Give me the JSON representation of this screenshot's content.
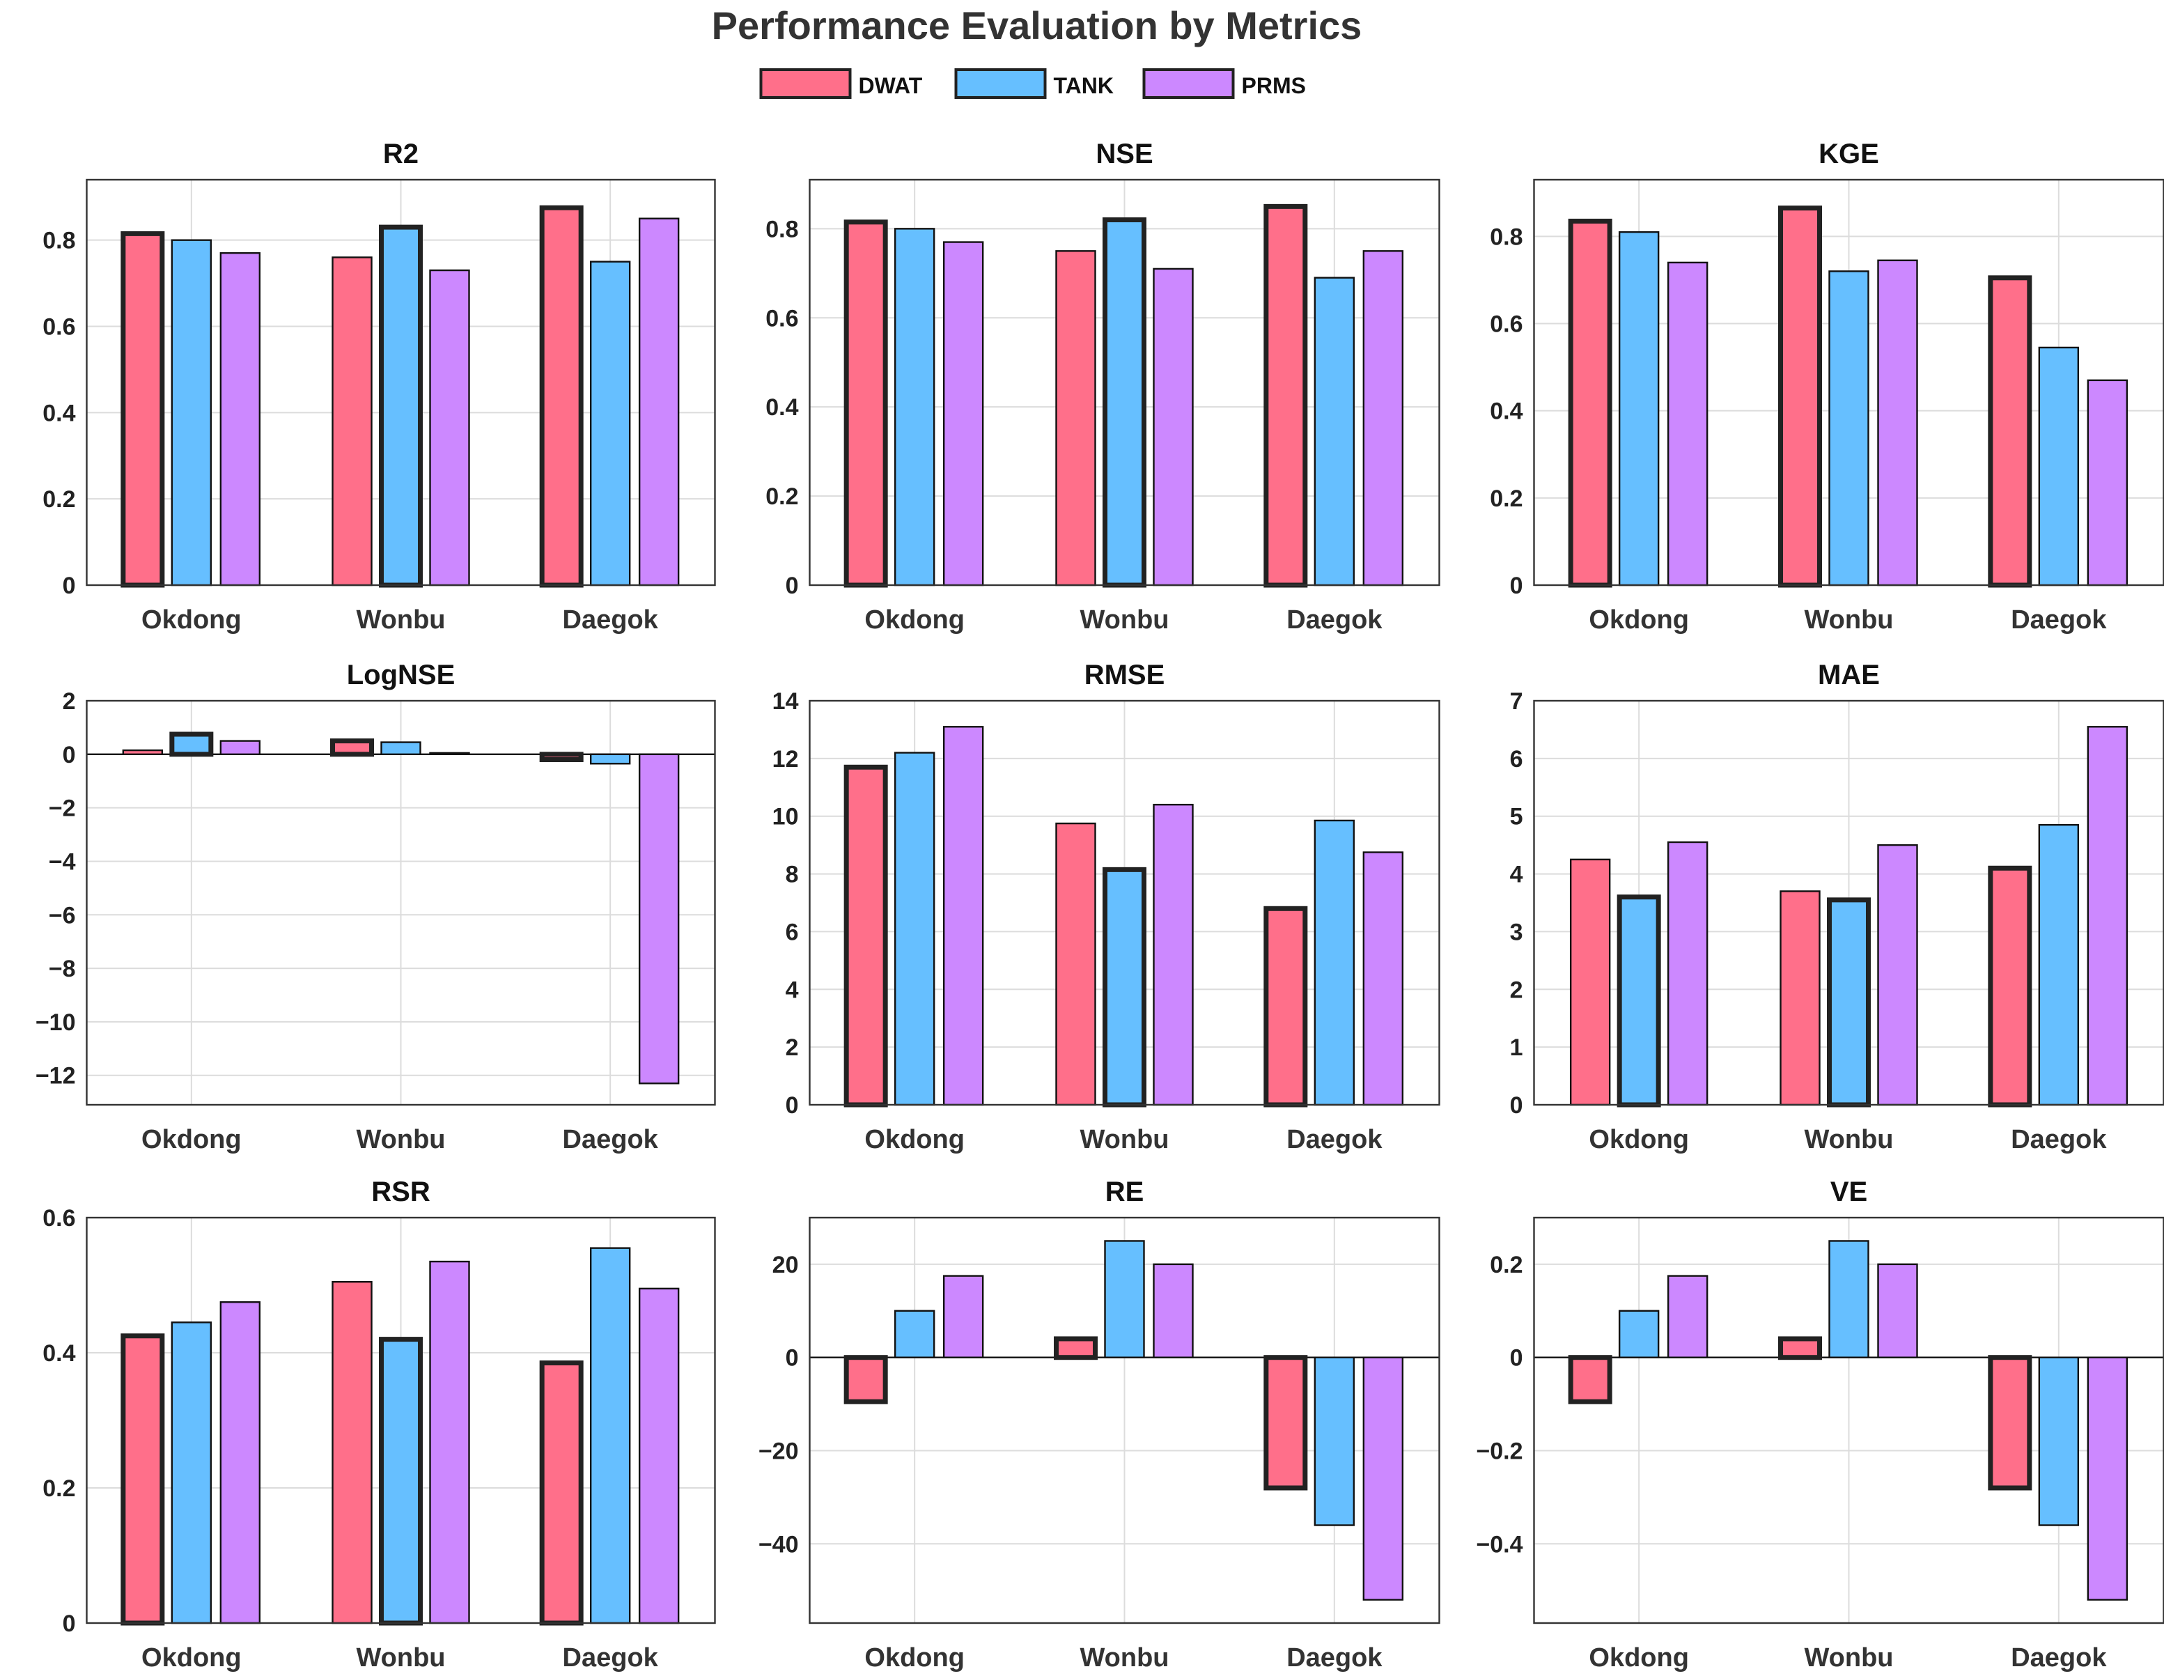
{
  "chart_data": {
    "type": "bar",
    "title": "Performance Evaluation by Metrics",
    "legend": {
      "placement": "top-center",
      "entries": [
        "DWAT",
        "TANK",
        "PRMS"
      ]
    },
    "colors": {
      "DWAT": "#ff6f8a",
      "TANK": "#66bfff",
      "PRMS": "#cc88ff"
    },
    "categories": [
      "Okdong",
      "Wonbu",
      "Daegok"
    ],
    "grid": true,
    "panels": [
      {
        "title": "R2",
        "ylim": [
          0,
          0.94
        ],
        "ticks": [
          0,
          0.2,
          0.4,
          0.6,
          0.8
        ],
        "tick_labels": [
          "0",
          "0.2",
          "0.4",
          "0.6",
          "0.8"
        ],
        "series": [
          {
            "name": "DWAT",
            "values": [
              0.815,
              0.76,
              0.875
            ]
          },
          {
            "name": "TANK",
            "values": [
              0.8,
              0.83,
              0.75
            ]
          },
          {
            "name": "PRMS",
            "values": [
              0.77,
              0.73,
              0.85
            ]
          }
        ],
        "best": [
          "DWAT",
          "TANK",
          "DWAT"
        ]
      },
      {
        "title": "NSE",
        "ylim": [
          0,
          0.91
        ],
        "ticks": [
          0,
          0.2,
          0.4,
          0.6,
          0.8
        ],
        "tick_labels": [
          "0",
          "0.2",
          "0.4",
          "0.6",
          "0.8"
        ],
        "series": [
          {
            "name": "DWAT",
            "values": [
              0.815,
              0.75,
              0.85
            ]
          },
          {
            "name": "TANK",
            "values": [
              0.8,
              0.82,
              0.69
            ]
          },
          {
            "name": "PRMS",
            "values": [
              0.77,
              0.71,
              0.75
            ]
          }
        ],
        "best": [
          "DWAT",
          "TANK",
          "DWAT"
        ]
      },
      {
        "title": "KGE",
        "ylim": [
          0,
          0.93
        ],
        "ticks": [
          0,
          0.2,
          0.4,
          0.6,
          0.8
        ],
        "tick_labels": [
          "0",
          "0.2",
          "0.4",
          "0.6",
          "0.8"
        ],
        "series": [
          {
            "name": "DWAT",
            "values": [
              0.835,
              0.865,
              0.705
            ]
          },
          {
            "name": "TANK",
            "values": [
              0.81,
              0.72,
              0.545
            ]
          },
          {
            "name": "PRMS",
            "values": [
              0.74,
              0.745,
              0.47
            ]
          }
        ],
        "best": [
          "DWAT",
          "DWAT",
          "DWAT"
        ]
      },
      {
        "title": "LogNSE",
        "ylim": [
          -13.1,
          2
        ],
        "ticks": [
          -12,
          -10,
          -8,
          -6,
          -4,
          -2,
          0,
          2
        ],
        "tick_labels": [
          "−12",
          "−10",
          "−8",
          "−6",
          "−4",
          "−2",
          "0",
          "2"
        ],
        "series": [
          {
            "name": "DWAT",
            "values": [
              0.15,
              0.5,
              -0.2
            ]
          },
          {
            "name": "TANK",
            "values": [
              0.75,
              0.45,
              -0.35
            ]
          },
          {
            "name": "PRMS",
            "values": [
              0.5,
              0.05,
              -12.3
            ]
          }
        ],
        "best": [
          "TANK",
          "DWAT",
          "DWAT"
        ]
      },
      {
        "title": "RMSE",
        "ylim": [
          0,
          14
        ],
        "ticks": [
          0,
          2,
          4,
          6,
          8,
          10,
          12,
          14
        ],
        "tick_labels": [
          "0",
          "2",
          "4",
          "6",
          "8",
          "10",
          "12",
          "14"
        ],
        "series": [
          {
            "name": "DWAT",
            "values": [
              11.7,
              9.75,
              6.8
            ]
          },
          {
            "name": "TANK",
            "values": [
              12.2,
              8.15,
              9.85
            ]
          },
          {
            "name": "PRMS",
            "values": [
              13.1,
              10.4,
              8.75
            ]
          }
        ],
        "best": [
          "DWAT",
          "TANK",
          "DWAT"
        ]
      },
      {
        "title": "MAE",
        "ylim": [
          0,
          7
        ],
        "ticks": [
          0,
          1,
          2,
          3,
          4,
          5,
          6,
          7
        ],
        "tick_labels": [
          "0",
          "1",
          "2",
          "3",
          "4",
          "5",
          "6",
          "7"
        ],
        "series": [
          {
            "name": "DWAT",
            "values": [
              4.25,
              3.7,
              4.1
            ]
          },
          {
            "name": "TANK",
            "values": [
              3.6,
              3.55,
              4.85
            ]
          },
          {
            "name": "PRMS",
            "values": [
              4.55,
              4.5,
              6.55
            ]
          }
        ],
        "best": [
          "TANK",
          "TANK",
          "DWAT"
        ]
      },
      {
        "title": "RSR",
        "ylim": [
          0,
          0.6
        ],
        "ticks": [
          0,
          0.2,
          0.4,
          0.6
        ],
        "tick_labels": [
          "0",
          "0.2",
          "0.4",
          "0.6"
        ],
        "series": [
          {
            "name": "DWAT",
            "values": [
              0.425,
              0.505,
              0.385
            ]
          },
          {
            "name": "TANK",
            "values": [
              0.445,
              0.42,
              0.555
            ]
          },
          {
            "name": "PRMS",
            "values": [
              0.475,
              0.535,
              0.495
            ]
          }
        ],
        "best": [
          "DWAT",
          "TANK",
          "DWAT"
        ]
      },
      {
        "title": "RE",
        "ylim": [
          -57,
          30
        ],
        "ticks": [
          -40,
          -20,
          0,
          20
        ],
        "tick_labels": [
          "−40",
          "−20",
          "0",
          "20"
        ],
        "series": [
          {
            "name": "DWAT",
            "values": [
              -9.5,
              4,
              -28
            ]
          },
          {
            "name": "TANK",
            "values": [
              10,
              25,
              -36
            ]
          },
          {
            "name": "PRMS",
            "values": [
              17.5,
              20,
              -52
            ]
          }
        ],
        "best": [
          "DWAT",
          "DWAT",
          "DWAT"
        ]
      },
      {
        "title": "VE",
        "ylim": [
          -0.57,
          0.3
        ],
        "ticks": [
          -0.4,
          -0.2,
          0,
          0.2
        ],
        "tick_labels": [
          "−0.4",
          "−0.2",
          "0",
          "0.2"
        ],
        "series": [
          {
            "name": "DWAT",
            "values": [
              -0.095,
              0.04,
              -0.28
            ]
          },
          {
            "name": "TANK",
            "values": [
              0.1,
              0.25,
              -0.36
            ]
          },
          {
            "name": "PRMS",
            "values": [
              0.175,
              0.2,
              -0.52
            ]
          }
        ],
        "best": [
          "DWAT",
          "DWAT",
          "DWAT"
        ]
      }
    ]
  }
}
